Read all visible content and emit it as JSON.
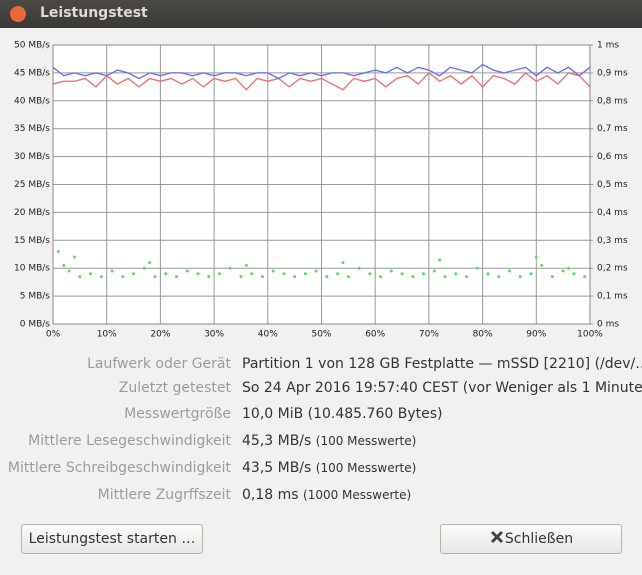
{
  "window": {
    "title": "Leistungstest"
  },
  "chart_data": {
    "type": "line",
    "xlim": [
      0,
      100
    ],
    "xticks": [
      {
        "value": 0,
        "label": "0%"
      },
      {
        "value": 10,
        "label": "10%"
      },
      {
        "value": 20,
        "label": "20%"
      },
      {
        "value": 30,
        "label": "30%"
      },
      {
        "value": 40,
        "label": "40%"
      },
      {
        "value": 50,
        "label": "50%"
      },
      {
        "value": 60,
        "label": "60%"
      },
      {
        "value": 70,
        "label": "70%"
      },
      {
        "value": 80,
        "label": "80%"
      },
      {
        "value": 90,
        "label": "90%"
      },
      {
        "value": 100,
        "label": "100%"
      }
    ],
    "ylim": [
      0,
      50
    ],
    "yticks": [
      {
        "value": 0,
        "label": "0 MB/s"
      },
      {
        "value": 5,
        "label": "5 MB/s"
      },
      {
        "value": 10,
        "label": "10 MB/s"
      },
      {
        "value": 15,
        "label": "15 MB/s"
      },
      {
        "value": 20,
        "label": "20 MB/s"
      },
      {
        "value": 25,
        "label": "25 MB/s"
      },
      {
        "value": 30,
        "label": "30 MB/s"
      },
      {
        "value": 35,
        "label": "35 MB/s"
      },
      {
        "value": 40,
        "label": "40 MB/s"
      },
      {
        "value": 45,
        "label": "45 MB/s"
      },
      {
        "value": 50,
        "label": "50 MB/s"
      }
    ],
    "y2lim": [
      0,
      1
    ],
    "y2ticks": [
      {
        "value": 0,
        "label": "0 ms"
      },
      {
        "value": 0.1,
        "label": "0,1 ms"
      },
      {
        "value": 0.2,
        "label": "0,2 ms"
      },
      {
        "value": 0.3,
        "label": "0,3 ms"
      },
      {
        "value": 0.4,
        "label": "0,4 ms"
      },
      {
        "value": 0.5,
        "label": "0,5 ms"
      },
      {
        "value": 0.6,
        "label": "0,6 ms"
      },
      {
        "value": 0.7,
        "label": "0,7 ms"
      },
      {
        "value": 0.8,
        "label": "0,8 ms"
      },
      {
        "value": 0.9,
        "label": "0,9 ms"
      },
      {
        "value": 1,
        "label": "1 ms"
      }
    ],
    "grid": true,
    "x": [
      0,
      2,
      4,
      6,
      8,
      10,
      12,
      14,
      16,
      18,
      20,
      22,
      24,
      26,
      28,
      30,
      32,
      34,
      36,
      38,
      40,
      42,
      44,
      46,
      48,
      50,
      52,
      54,
      56,
      58,
      60,
      62,
      64,
      66,
      68,
      70,
      72,
      74,
      76,
      78,
      80,
      82,
      84,
      86,
      88,
      90,
      92,
      94,
      96,
      98,
      100
    ],
    "series": [
      {
        "color": "#6b6bef",
        "values": [
          46,
          44.5,
          45,
          44.5,
          45,
          44.5,
          45.5,
          45,
          44,
          45,
          44.5,
          45,
          45,
          44.5,
          45,
          44.5,
          45,
          45,
          44.5,
          45,
          45,
          44,
          45,
          44.5,
          45,
          44.5,
          45,
          45,
          44.5,
          45,
          45.5,
          45,
          46,
          45,
          46,
          45.5,
          44.5,
          46,
          45.5,
          45,
          46.5,
          45.5,
          45,
          45.5,
          46,
          44.5,
          46,
          45,
          46,
          44.5,
          46
        ]
      },
      {
        "color": "#ef6b6b",
        "values": [
          43,
          43.5,
          43.5,
          44,
          42.5,
          44.5,
          43,
          44,
          42.5,
          44,
          43.5,
          44,
          43,
          44,
          42.5,
          44,
          43.5,
          44,
          42,
          44,
          43.5,
          44,
          42.5,
          44,
          43.5,
          44,
          43,
          42,
          44,
          43.5,
          44,
          42.5,
          44,
          44.5,
          43,
          45,
          43.5,
          44.5,
          43,
          44.5,
          42.5,
          44.5,
          44,
          43,
          45,
          43.5,
          44.5,
          43,
          45,
          44.5,
          42.5
        ]
      },
      {
        "type": "scatter",
        "axis": "y2",
        "color": "#55e055",
        "x": [
          1,
          2,
          3,
          5,
          7,
          9,
          11,
          13,
          15,
          17,
          19,
          21,
          23,
          25,
          27,
          29,
          31,
          33,
          35,
          37,
          39,
          41,
          43,
          45,
          47,
          49,
          51,
          53,
          55,
          57,
          59,
          61,
          63,
          65,
          67,
          69,
          71,
          73,
          75,
          77,
          79,
          81,
          83,
          85,
          87,
          89,
          91,
          93,
          95,
          97,
          99,
          4,
          18,
          36,
          54,
          72,
          90,
          96
        ],
        "values": [
          0.26,
          0.21,
          0.19,
          0.17,
          0.18,
          0.17,
          0.19,
          0.17,
          0.18,
          0.2,
          0.17,
          0.18,
          0.17,
          0.19,
          0.18,
          0.17,
          0.18,
          0.2,
          0.17,
          0.18,
          0.17,
          0.19,
          0.18,
          0.17,
          0.18,
          0.19,
          0.17,
          0.18,
          0.17,
          0.2,
          0.18,
          0.17,
          0.19,
          0.18,
          0.17,
          0.18,
          0.19,
          0.17,
          0.18,
          0.17,
          0.2,
          0.18,
          0.17,
          0.19,
          0.17,
          0.18,
          0.21,
          0.17,
          0.19,
          0.18,
          0.17,
          0.24,
          0.22,
          0.21,
          0.22,
          0.23,
          0.24,
          0.2
        ]
      }
    ]
  },
  "details": {
    "rows": [
      {
        "label": "Laufwerk oder Gerät",
        "value": "Partition 1 von 128 GB Festplatte — mSSD [2210] (/dev/…"
      },
      {
        "label": "Zuletzt getestet",
        "value": "So 24 Apr 2016 19:57:40 CEST (vor Weniger als 1 Minute)"
      },
      {
        "label": "Messwertgröße",
        "value": "10,0 MiB (10.485.760 Bytes)"
      },
      {
        "label": "Mittlere Lesegeschwindigkeit",
        "value": "45,3 MB/s",
        "note": "(100 Messwerte)"
      },
      {
        "label": "Mittlere Schreibgeschwindigkeit",
        "value": "43,5 MB/s",
        "note": "(100 Messwerte)"
      },
      {
        "label": "Mittlere Zugrffszeit",
        "value": "0,18 ms",
        "note": "(1000 Messwerte)"
      }
    ]
  },
  "buttons": {
    "start": "Leistungstest starten …",
    "close": "Schließen"
  }
}
